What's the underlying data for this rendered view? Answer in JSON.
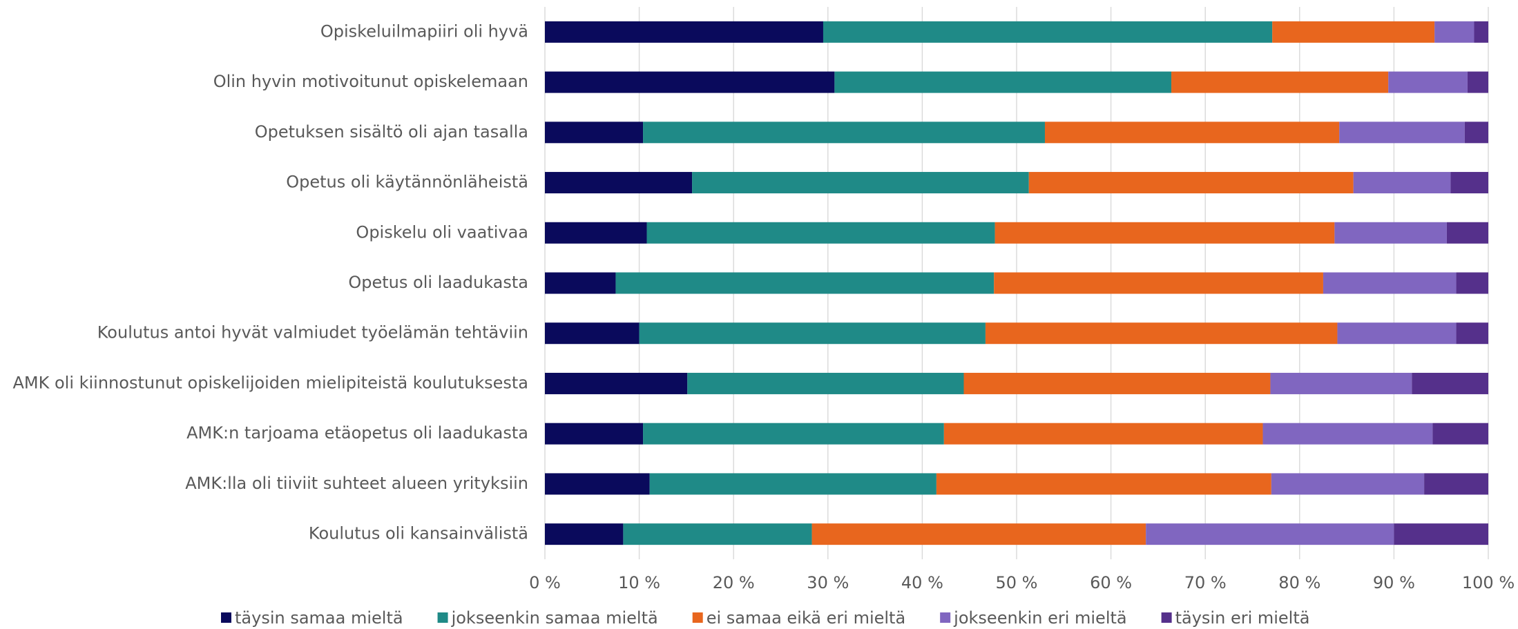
{
  "chart_data": {
    "type": "stacked_barh",
    "categories": [
      "Opiskeluilmapiiri oli hyvä",
      "Olin hyvin motivoitunut opiskelemaan",
      "Opetuksen sisältö oli ajan tasalla",
      "Opetus oli käytännönläheistä",
      "Opiskelu oli vaativaa",
      "Opetus oli laadukasta",
      "Koulutus antoi hyvät valmiudet työelämän tehtäviin",
      "AMK oli kiinnostunut opiskelijoiden mielipiteistä koulutuksesta",
      "AMK:n tarjoama etäopetus oli laadukasta",
      "AMK:lla oli tiiviit suhteet alueen yrityksiin",
      "Koulutus oli kansainvälistä"
    ],
    "series": [
      {
        "name": "täysin samaa mieltä",
        "color": "#0a0a5c",
        "values": [
          29.5,
          30.7,
          10.4,
          15.6,
          10.8,
          7.5,
          10.0,
          15.1,
          10.4,
          11.1,
          8.3
        ]
      },
      {
        "name": "jokseenkin samaa mieltä",
        "color": "#1f8a87",
        "values": [
          47.6,
          35.7,
          42.6,
          35.7,
          36.9,
          40.1,
          36.7,
          29.3,
          31.9,
          30.4,
          20.0
        ]
      },
      {
        "name": "ei samaa eikä eri mieltä",
        "color": "#e8661e",
        "values": [
          17.2,
          23.0,
          31.2,
          34.4,
          36.0,
          34.9,
          37.3,
          32.5,
          33.8,
          35.5,
          35.4
        ]
      },
      {
        "name": "jokseenkin eri mieltä",
        "color": "#8066c0",
        "values": [
          4.2,
          8.4,
          13.3,
          10.3,
          11.9,
          14.1,
          12.6,
          15.0,
          18.0,
          16.2,
          26.3
        ]
      },
      {
        "name": "täysin eri mieltä",
        "color": "#55308b",
        "values": [
          1.5,
          2.2,
          2.5,
          4.0,
          4.4,
          3.4,
          3.4,
          8.1,
          5.9,
          6.8,
          10.0
        ]
      }
    ],
    "xlim": [
      0,
      100
    ],
    "xticks": [
      {
        "value": 0,
        "label": "0 %"
      },
      {
        "value": 10,
        "label": "10 %"
      },
      {
        "value": 20,
        "label": "20 %"
      },
      {
        "value": 30,
        "label": "30 %"
      },
      {
        "value": 40,
        "label": "40 %"
      },
      {
        "value": 50,
        "label": "50 %"
      },
      {
        "value": 60,
        "label": "60 %"
      },
      {
        "value": 70,
        "label": "70 %"
      },
      {
        "value": 80,
        "label": "80 %"
      },
      {
        "value": 90,
        "label": "90 %"
      },
      {
        "value": 100,
        "label": "100 %"
      }
    ],
    "grid": true,
    "legend": "bottom"
  }
}
